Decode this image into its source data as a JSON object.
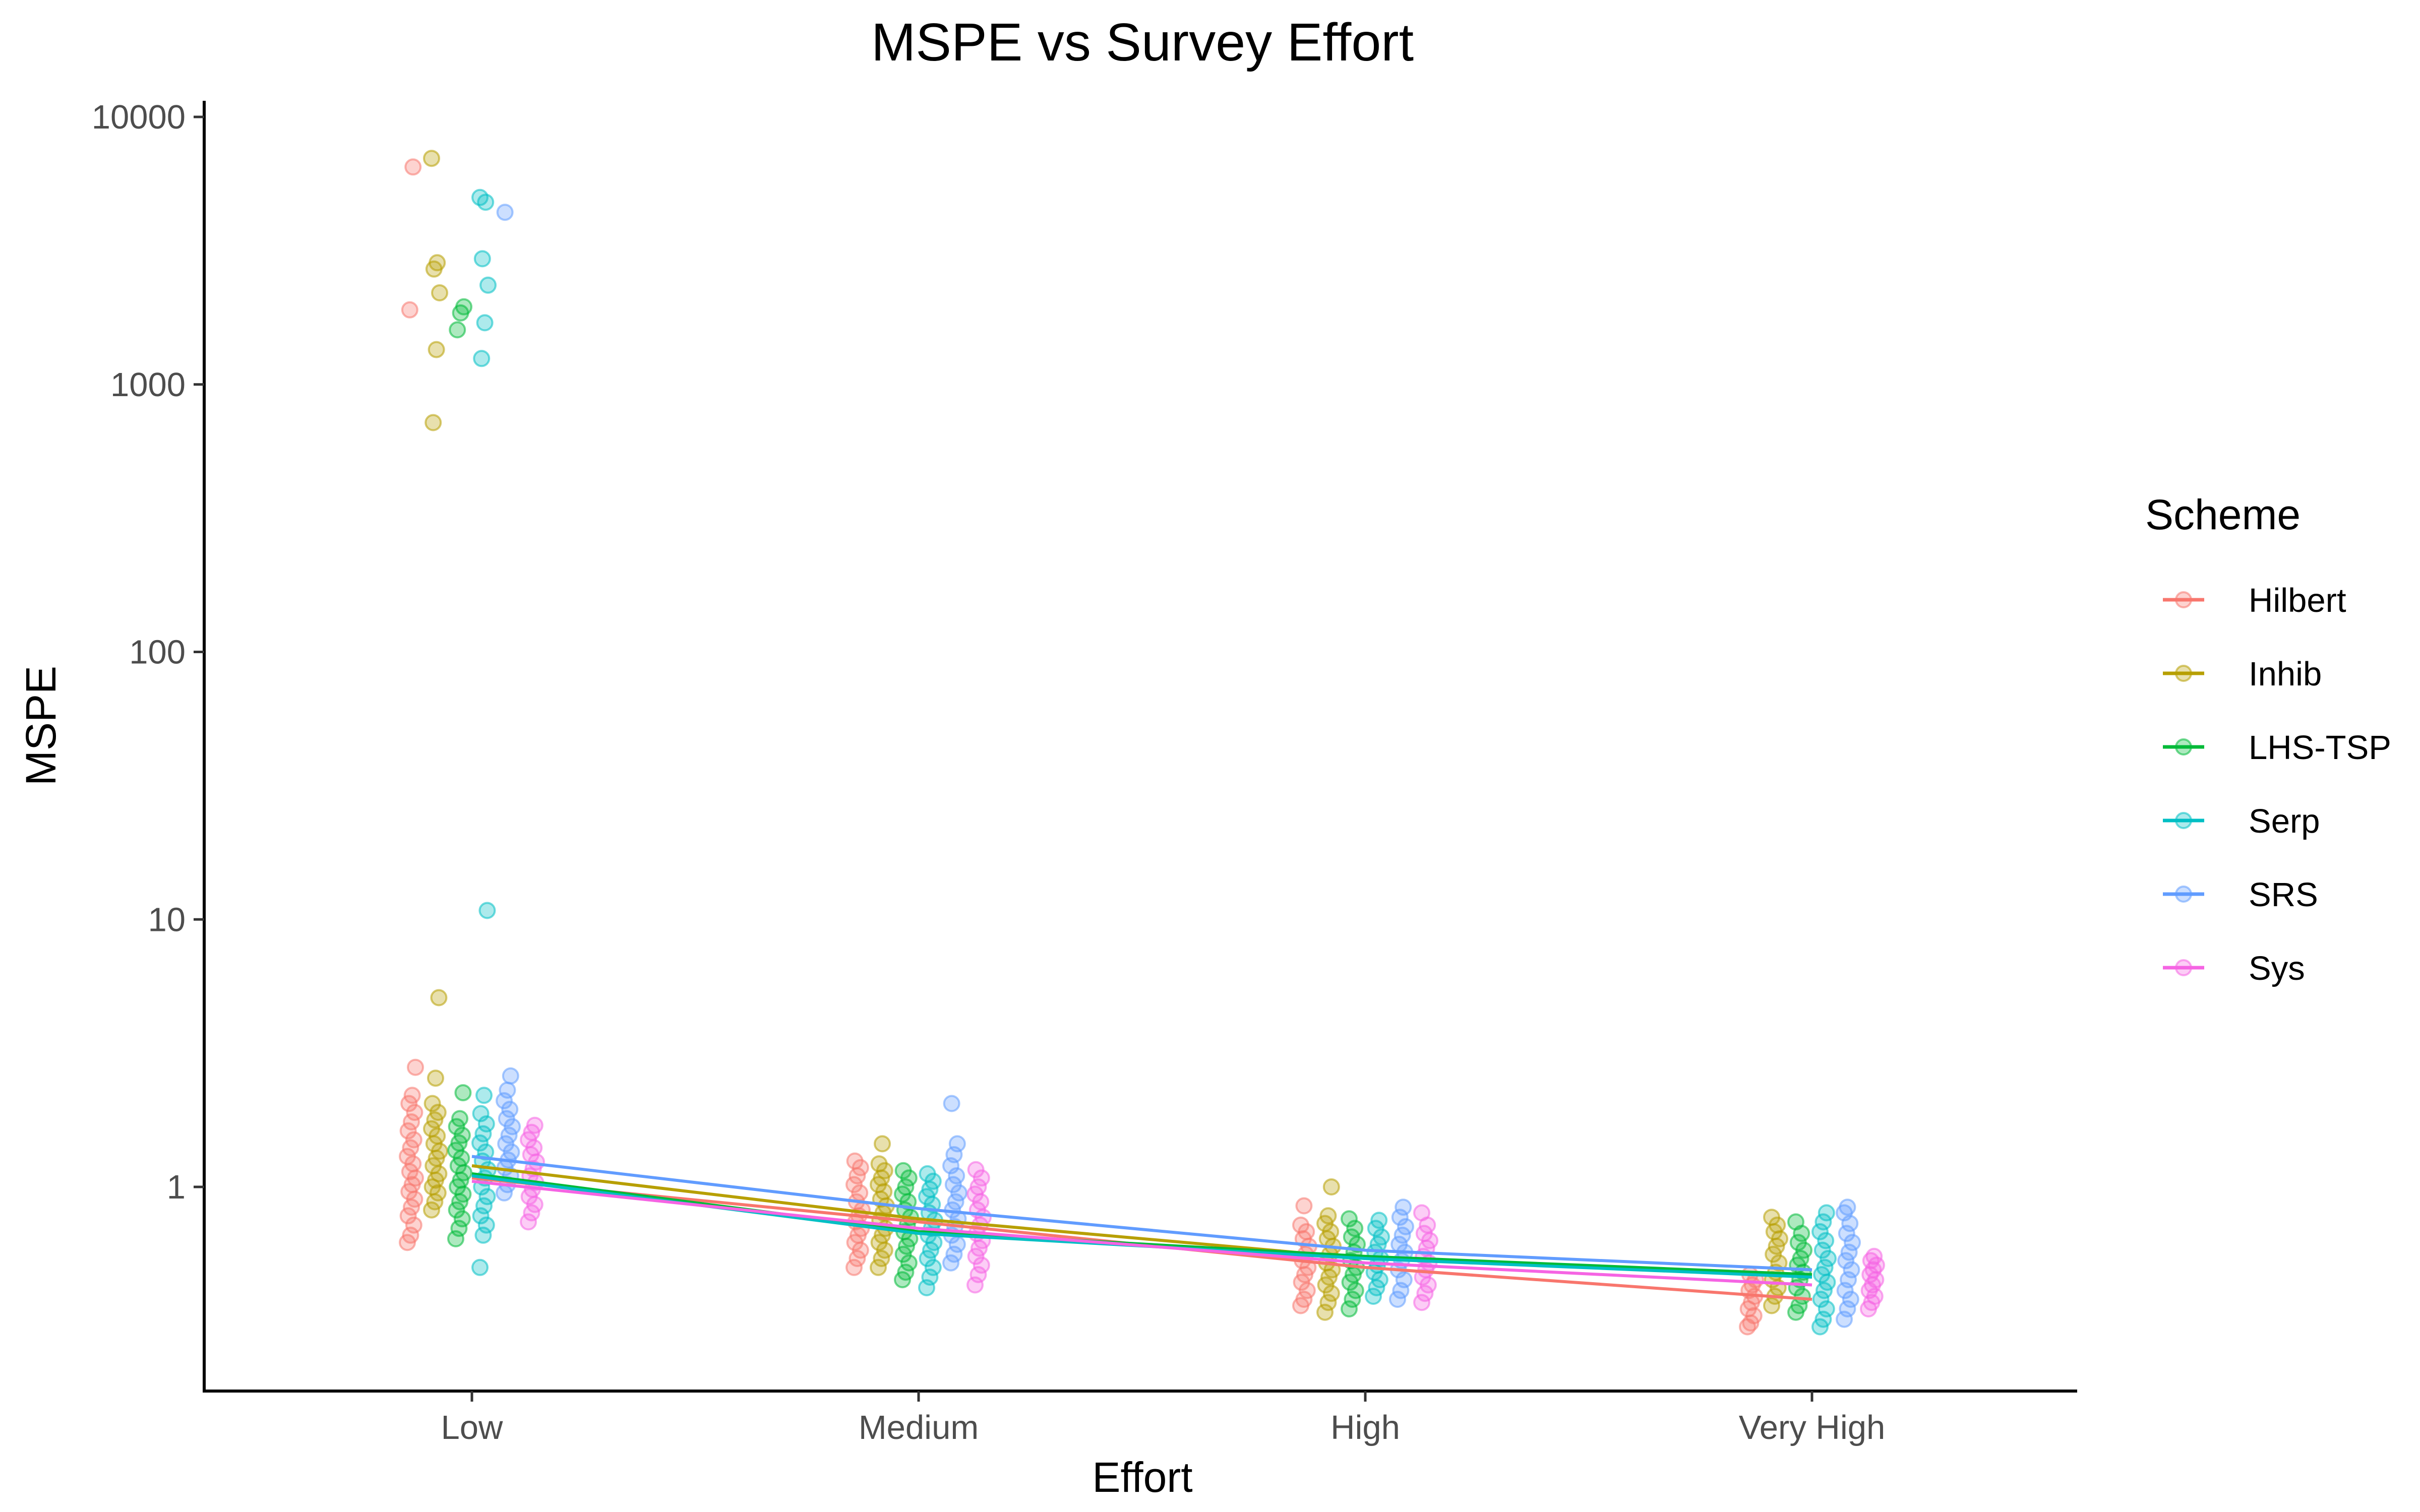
{
  "chart_data": {
    "type": "scatter",
    "title": "MSPE vs Survey Effort",
    "xlabel": "Effort",
    "ylabel": "MSPE",
    "categories": [
      "Low",
      "Medium",
      "High",
      "Very High"
    ],
    "y_scale": "log10",
    "y_ticks": [
      1,
      10,
      100,
      1000,
      10000
    ],
    "y_tick_labels": [
      "1",
      "10",
      "100",
      "1000",
      "10000"
    ],
    "ylim": [
      0.2,
      11000
    ],
    "grid": false,
    "legend": {
      "title": "Scheme",
      "placement": "right"
    },
    "series": [
      {
        "name": "Hilbert",
        "color": "#F8766D",
        "mean_line": [
          1.08,
          0.74,
          0.5,
          0.38
        ],
        "points": [
          {
            "x": "Low",
            "values": [
              0.62,
              0.66,
              0.72,
              0.78,
              0.84,
              0.9,
              0.96,
              1.02,
              1.08,
              1.14,
              1.22,
              1.3,
              1.4,
              1.5,
              1.62,
              1.75,
              1.9,
              2.05,
              2.2,
              2.8,
              1900,
              6500
            ]
          },
          {
            "x": "Medium",
            "values": [
              0.5,
              0.54,
              0.58,
              0.62,
              0.66,
              0.7,
              0.74,
              0.78,
              0.82,
              0.88,
              0.95,
              1.02,
              1.1,
              1.18,
              1.25
            ]
          },
          {
            "x": "High",
            "values": [
              0.36,
              0.38,
              0.41,
              0.44,
              0.47,
              0.5,
              0.53,
              0.56,
              0.6,
              0.64,
              0.68,
              0.72,
              0.85
            ]
          },
          {
            "x": "Very High",
            "values": [
              0.3,
              0.31,
              0.33,
              0.35,
              0.37,
              0.39,
              0.41,
              0.43,
              0.45,
              0.47
            ]
          }
        ]
      },
      {
        "name": "Inhib",
        "color": "#B79F00",
        "mean_line": [
          1.2,
          0.76,
          0.54,
          0.47
        ],
        "points": [
          {
            "x": "Low",
            "values": [
              0.82,
              0.88,
              0.95,
              1.0,
              1.06,
              1.12,
              1.2,
              1.28,
              1.36,
              1.45,
              1.55,
              1.65,
              1.78,
              1.9,
              2.05,
              2.55,
              5.1,
              720,
              1350,
              2200,
              2700,
              2850,
              7000
            ]
          },
          {
            "x": "Medium",
            "values": [
              0.5,
              0.54,
              0.58,
              0.62,
              0.66,
              0.7,
              0.75,
              0.8,
              0.85,
              0.9,
              0.96,
              1.02,
              1.08,
              1.15,
              1.22,
              1.45
            ]
          },
          {
            "x": "High",
            "values": [
              0.34,
              0.37,
              0.4,
              0.43,
              0.46,
              0.49,
              0.52,
              0.56,
              0.6,
              0.64,
              0.68,
              0.73,
              0.78,
              1.0
            ]
          },
          {
            "x": "Very High",
            "values": [
              0.36,
              0.39,
              0.42,
              0.45,
              0.48,
              0.52,
              0.56,
              0.6,
              0.64,
              0.68,
              0.72,
              0.77
            ]
          }
        ]
      },
      {
        "name": "LHS-TSP",
        "color": "#00BA38",
        "mean_line": [
          1.12,
          0.68,
          0.55,
          0.47
        ],
        "points": [
          {
            "x": "Low",
            "values": [
              0.64,
              0.7,
              0.76,
              0.82,
              0.88,
              0.94,
              1.0,
              1.06,
              1.13,
              1.2,
              1.28,
              1.37,
              1.46,
              1.56,
              1.68,
              1.8,
              2.25,
              1600,
              1850,
              1950
            ]
          },
          {
            "x": "Medium",
            "values": [
              0.45,
              0.48,
              0.52,
              0.56,
              0.6,
              0.64,
              0.68,
              0.72,
              0.77,
              0.82,
              0.88,
              0.94,
              1.0,
              1.08,
              1.15
            ]
          },
          {
            "x": "High",
            "values": [
              0.35,
              0.38,
              0.41,
              0.44,
              0.47,
              0.5,
              0.53,
              0.57,
              0.61,
              0.65,
              0.7,
              0.76
            ]
          },
          {
            "x": "Very High",
            "values": [
              0.34,
              0.36,
              0.39,
              0.42,
              0.45,
              0.48,
              0.51,
              0.54,
              0.58,
              0.62,
              0.67,
              0.74
            ]
          }
        ]
      },
      {
        "name": "Serp",
        "color": "#00BFC4",
        "mean_line": [
          1.1,
          0.67,
          0.54,
          0.46
        ],
        "points": [
          {
            "x": "Low",
            "values": [
              0.5,
              0.66,
              0.72,
              0.78,
              0.85,
              0.92,
              1.0,
              1.08,
              1.16,
              1.25,
              1.35,
              1.46,
              1.58,
              1.72,
              1.88,
              2.2,
              10.8,
              1250,
              1700,
              2350,
              2950,
              4800,
              5000
            ]
          },
          {
            "x": "Medium",
            "values": [
              0.42,
              0.46,
              0.5,
              0.54,
              0.58,
              0.62,
              0.66,
              0.7,
              0.75,
              0.8,
              0.86,
              0.92,
              0.98,
              1.05,
              1.12
            ]
          },
          {
            "x": "High",
            "values": [
              0.39,
              0.42,
              0.45,
              0.48,
              0.51,
              0.54,
              0.57,
              0.61,
              0.65,
              0.7,
              0.75
            ]
          },
          {
            "x": "Very High",
            "values": [
              0.3,
              0.32,
              0.35,
              0.38,
              0.41,
              0.44,
              0.47,
              0.5,
              0.54,
              0.58,
              0.63,
              0.68,
              0.74,
              0.8
            ]
          }
        ]
      },
      {
        "name": "SRS",
        "color": "#619CFF",
        "mean_line": [
          1.3,
          0.83,
          0.58,
          0.49
        ],
        "points": [
          {
            "x": "Low",
            "values": [
              0.95,
              1.02,
              1.1,
              1.18,
              1.26,
              1.35,
              1.45,
              1.56,
              1.68,
              1.8,
              1.95,
              2.1,
              2.3,
              2.6,
              4400
            ]
          },
          {
            "x": "Medium",
            "values": [
              0.52,
              0.56,
              0.61,
              0.66,
              0.71,
              0.76,
              0.82,
              0.88,
              0.95,
              1.02,
              1.1,
              1.2,
              1.32,
              1.45,
              2.05
            ]
          },
          {
            "x": "High",
            "values": [
              0.38,
              0.41,
              0.45,
              0.49,
              0.53,
              0.57,
              0.61,
              0.66,
              0.71,
              0.77,
              0.84
            ]
          },
          {
            "x": "Very High",
            "values": [
              0.32,
              0.35,
              0.38,
              0.41,
              0.45,
              0.49,
              0.53,
              0.57,
              0.62,
              0.67,
              0.73,
              0.8,
              0.84
            ]
          }
        ]
      },
      {
        "name": "Sys",
        "color": "#F564E3",
        "mean_line": [
          1.05,
          0.7,
          0.52,
          0.43
        ],
        "points": [
          {
            "x": "Low",
            "values": [
              0.74,
              0.8,
              0.86,
              0.92,
              0.98,
              1.04,
              1.1,
              1.17,
              1.24,
              1.32,
              1.4,
              1.5,
              1.6,
              1.7
            ]
          },
          {
            "x": "Medium",
            "values": [
              0.43,
              0.47,
              0.51,
              0.55,
              0.59,
              0.63,
              0.67,
              0.72,
              0.77,
              0.82,
              0.88,
              0.94,
              1.0,
              1.08,
              1.16
            ]
          },
          {
            "x": "High",
            "values": [
              0.37,
              0.4,
              0.43,
              0.46,
              0.49,
              0.52,
              0.55,
              0.59,
              0.63,
              0.67,
              0.72,
              0.8
            ]
          },
          {
            "x": "Very High",
            "values": [
              0.35,
              0.37,
              0.39,
              0.41,
              0.43,
              0.45,
              0.47,
              0.49,
              0.51,
              0.53,
              0.55
            ]
          }
        ]
      }
    ]
  }
}
